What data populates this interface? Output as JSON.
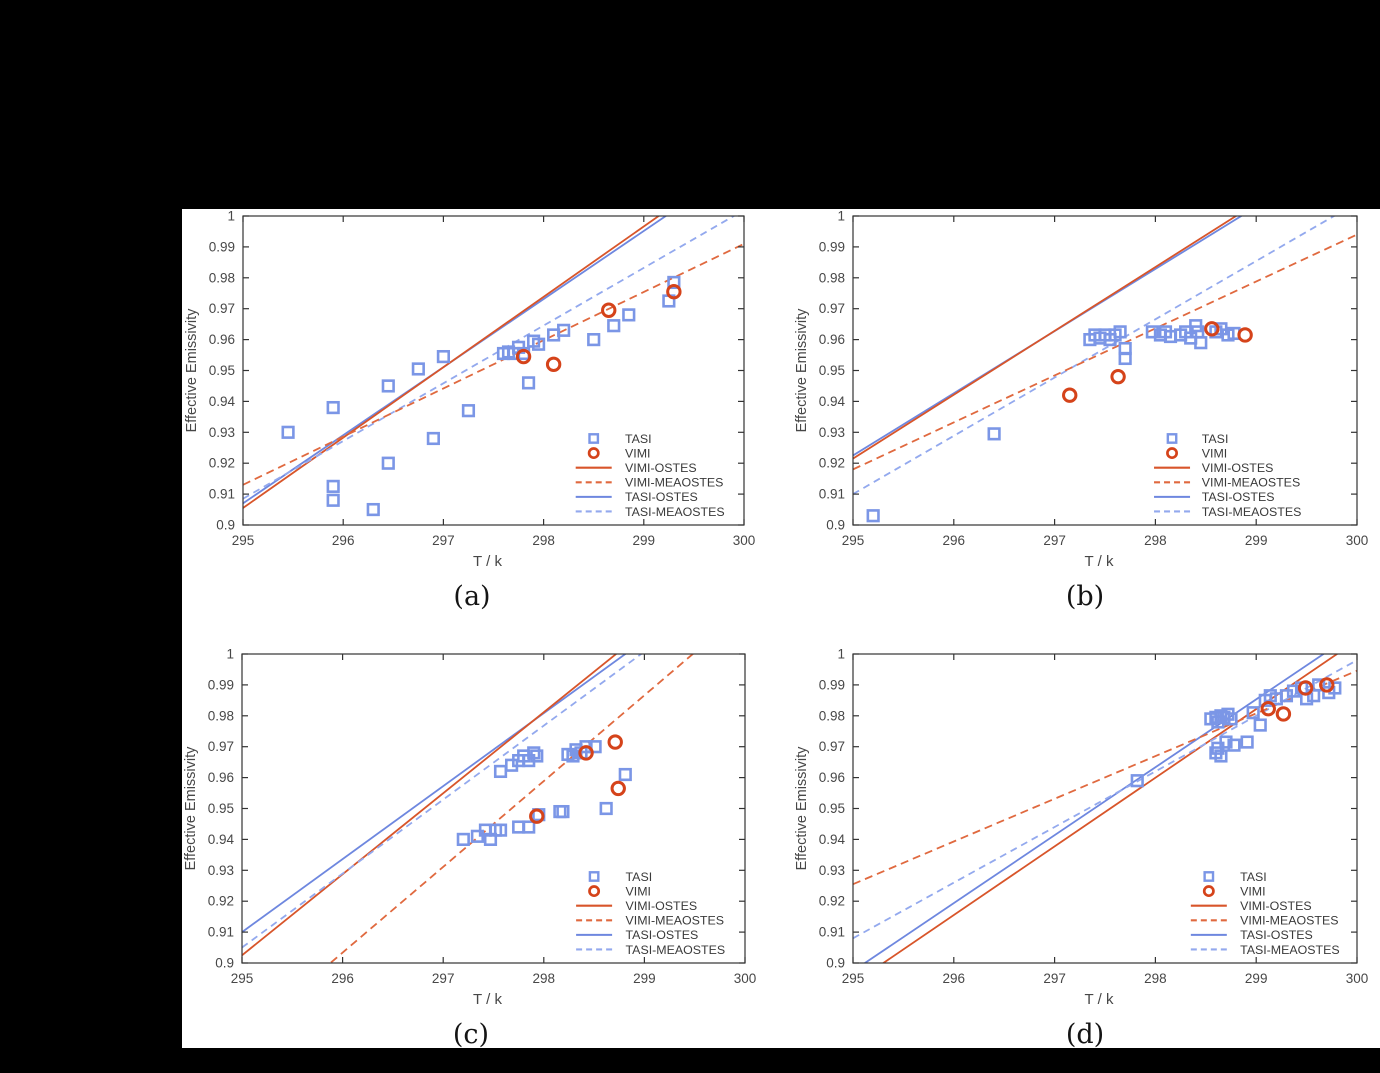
{
  "figure": {
    "background": "#000000",
    "panel_background": "#ffffff",
    "colors": {
      "tasi_marker": "#7b96e6",
      "vimi_marker": "#d5431a",
      "tasi_line": "#6e87df",
      "tasi_dash": "#93a9ee",
      "vimi_line": "#d8552a",
      "vimi_dash": "#e0693f",
      "axis": "#333333",
      "text": "#474747",
      "legend_text": "#3a3a3a"
    },
    "legend_labels": [
      "TASI",
      "VIMI",
      "VIMI-OSTES",
      "VIMI-MEAOSTES",
      "TASI-OSTES",
      "TASI-MEAOSTES"
    ]
  },
  "chart_data": [
    {
      "id": "a",
      "type": "scatter",
      "title": "(a)",
      "xlabel": "T / k",
      "ylabel": "Effective Emissivity",
      "xlim": [
        295,
        300
      ],
      "ylim": [
        0.9,
        1.0
      ],
      "xticks": [
        295,
        296,
        297,
        298,
        299,
        300
      ],
      "yticks": [
        0.9,
        0.91,
        0.92,
        0.93,
        0.94,
        0.95,
        0.96,
        0.97,
        0.98,
        0.99,
        1
      ],
      "grid": false,
      "legend_position": "lower-right-inside",
      "series": {
        "TASI": [
          [
            295.45,
            0.93
          ],
          [
            295.9,
            0.938
          ],
          [
            295.9,
            0.9125
          ],
          [
            295.9,
            0.908
          ],
          [
            296.3,
            0.905
          ],
          [
            296.45,
            0.945
          ],
          [
            296.45,
            0.92
          ],
          [
            296.75,
            0.9505
          ],
          [
            296.9,
            0.928
          ],
          [
            297.0,
            0.9545
          ],
          [
            297.25,
            0.937
          ],
          [
            297.6,
            0.9555
          ],
          [
            297.65,
            0.956
          ],
          [
            297.7,
            0.9555
          ],
          [
            297.75,
            0.9575
          ],
          [
            297.8,
            0.9555
          ],
          [
            297.85,
            0.946
          ],
          [
            297.9,
            0.9595
          ],
          [
            297.95,
            0.9585
          ],
          [
            298.1,
            0.9615
          ],
          [
            298.2,
            0.963
          ],
          [
            298.5,
            0.96
          ],
          [
            298.7,
            0.9645
          ],
          [
            298.85,
            0.968
          ],
          [
            299.25,
            0.9725
          ],
          [
            299.3,
            0.9785
          ]
        ],
        "VIMI": [
          [
            297.8,
            0.9545
          ],
          [
            298.1,
            0.952
          ],
          [
            298.65,
            0.9695
          ],
          [
            299.3,
            0.9755
          ]
        ],
        "VIMI_OSTES": {
          "x": [
            295,
            300
          ],
          "y": [
            0.9055,
            1.0194
          ]
        },
        "VIMI_MEAOSTES": {
          "x": [
            295,
            300
          ],
          "y": [
            0.913,
            0.991
          ]
        },
        "TASI_OSTES": {
          "x": [
            295,
            300
          ],
          "y": [
            0.907,
            1.0172
          ]
        },
        "TASI_MEAOSTES": {
          "x": [
            295,
            300
          ],
          "y": [
            0.9085,
            1.0019
          ]
        }
      }
    },
    {
      "id": "b",
      "type": "scatter",
      "title": "(b)",
      "xlabel": "T / k",
      "ylabel": "Effective Emissivity",
      "xlim": [
        295,
        300
      ],
      "ylim": [
        0.9,
        1.0
      ],
      "xticks": [
        295,
        296,
        297,
        298,
        299,
        300
      ],
      "yticks": [
        0.9,
        0.91,
        0.92,
        0.93,
        0.94,
        0.95,
        0.96,
        0.97,
        0.98,
        0.99,
        1
      ],
      "grid": false,
      "legend_position": "lower-right-inside",
      "series": {
        "TASI": [
          [
            295.2,
            0.903
          ],
          [
            296.4,
            0.9295
          ],
          [
            297.35,
            0.96
          ],
          [
            297.4,
            0.9615
          ],
          [
            297.45,
            0.9605
          ],
          [
            297.5,
            0.9615
          ],
          [
            297.55,
            0.96
          ],
          [
            297.6,
            0.9615
          ],
          [
            297.65,
            0.9625
          ],
          [
            297.7,
            0.9571
          ],
          [
            297.7,
            0.9539
          ],
          [
            297.97,
            0.9625
          ],
          [
            298.05,
            0.9615
          ],
          [
            298.1,
            0.9625
          ],
          [
            298.15,
            0.961
          ],
          [
            298.25,
            0.9615
          ],
          [
            298.3,
            0.9625
          ],
          [
            298.35,
            0.9605
          ],
          [
            298.4,
            0.9645
          ],
          [
            298.42,
            0.9625
          ],
          [
            298.45,
            0.959
          ],
          [
            298.6,
            0.9625
          ],
          [
            298.65,
            0.9635
          ],
          [
            298.72,
            0.9615
          ],
          [
            298.78,
            0.962
          ]
        ],
        "VIMI": [
          [
            297.15,
            0.942
          ],
          [
            297.63,
            0.948
          ],
          [
            298.56,
            0.9635
          ],
          [
            298.89,
            0.9615
          ]
        ],
        "VIMI_OSTES": {
          "x": [
            295,
            300
          ],
          "y": [
            0.9215,
            1.0248
          ]
        },
        "VIMI_MEAOSTES": {
          "x": [
            295,
            300
          ],
          "y": [
            0.918,
            0.994
          ]
        },
        "TASI_OSTES": {
          "x": [
            295,
            300
          ],
          "y": [
            0.9225,
            1.0231
          ]
        },
        "TASI_MEAOSTES": {
          "x": [
            295,
            300
          ],
          "y": [
            0.91,
            1.0043
          ]
        }
      }
    },
    {
      "id": "c",
      "type": "scatter",
      "title": "(c)",
      "xlabel": "T / k",
      "ylabel": "Effective Emissivity",
      "xlim": [
        295,
        300
      ],
      "ylim": [
        0.9,
        1.0
      ],
      "xticks": [
        295,
        296,
        297,
        298,
        299,
        300
      ],
      "yticks": [
        0.9,
        0.91,
        0.92,
        0.93,
        0.94,
        0.95,
        0.96,
        0.97,
        0.98,
        0.99,
        1
      ],
      "grid": false,
      "legend_position": "lower-right-inside",
      "series": {
        "TASI": [
          [
            297.2,
            0.94
          ],
          [
            297.34,
            0.941
          ],
          [
            297.42,
            0.943
          ],
          [
            297.47,
            0.94
          ],
          [
            297.52,
            0.943
          ],
          [
            297.57,
            0.943
          ],
          [
            297.75,
            0.944
          ],
          [
            297.85,
            0.944
          ],
          [
            297.95,
            0.948
          ],
          [
            298.16,
            0.949
          ],
          [
            298.19,
            0.949
          ],
          [
            298.62,
            0.95
          ],
          [
            298.81,
            0.961
          ],
          [
            297.57,
            0.962
          ],
          [
            297.68,
            0.964
          ],
          [
            297.75,
            0.9655
          ],
          [
            297.8,
            0.967
          ],
          [
            297.85,
            0.9655
          ],
          [
            297.9,
            0.968
          ],
          [
            297.93,
            0.967
          ],
          [
            298.24,
            0.9675
          ],
          [
            298.29,
            0.967
          ],
          [
            298.32,
            0.969
          ],
          [
            298.37,
            0.968
          ],
          [
            298.42,
            0.97
          ],
          [
            298.51,
            0.97
          ]
        ],
        "VIMI": [
          [
            297.93,
            0.9475
          ],
          [
            298.42,
            0.968
          ],
          [
            298.71,
            0.9715
          ],
          [
            298.74,
            0.9565
          ]
        ],
        "VIMI_OSTES": {
          "x": [
            295,
            300
          ],
          "y": [
            0.9025,
            1.0336
          ]
        },
        "VIMI_MEAOSTES": {
          "x": [
            295,
            300
          ],
          "y": [
            0.8756,
            1.0144
          ]
        },
        "TASI_OSTES": {
          "x": [
            295,
            300
          ],
          "y": [
            0.91,
            1.0281
          ]
        },
        "TASI_MEAOSTES": {
          "x": [
            295,
            300
          ],
          "y": [
            0.905,
            1.0247
          ]
        }
      }
    },
    {
      "id": "d",
      "type": "scatter",
      "title": "(d)",
      "xlabel": "T / k",
      "ylabel": "Effective Emissivity",
      "xlim": [
        295,
        300
      ],
      "ylim": [
        0.9,
        1.0
      ],
      "xticks": [
        295,
        296,
        297,
        298,
        299,
        300
      ],
      "yticks": [
        0.9,
        0.91,
        0.92,
        0.93,
        0.94,
        0.95,
        0.96,
        0.97,
        0.98,
        0.99,
        1
      ],
      "grid": false,
      "legend_position": "lower-right-inside",
      "series": {
        "TASI": [
          [
            297.82,
            0.959
          ],
          [
            298.6,
            0.968
          ],
          [
            298.62,
            0.9695
          ],
          [
            298.65,
            0.967
          ],
          [
            298.7,
            0.9715
          ],
          [
            298.78,
            0.9705
          ],
          [
            298.91,
            0.9715
          ],
          [
            298.55,
            0.979
          ],
          [
            298.6,
            0.9795
          ],
          [
            298.62,
            0.978
          ],
          [
            298.65,
            0.98
          ],
          [
            298.68,
            0.9795
          ],
          [
            298.72,
            0.9805
          ],
          [
            298.75,
            0.979
          ],
          [
            298.97,
            0.981
          ],
          [
            299.04,
            0.977
          ],
          [
            299.09,
            0.985
          ],
          [
            299.14,
            0.9865
          ],
          [
            299.2,
            0.9855
          ],
          [
            299.3,
            0.9865
          ],
          [
            299.37,
            0.988
          ],
          [
            299.45,
            0.989
          ],
          [
            299.5,
            0.9855
          ],
          [
            299.57,
            0.9865
          ],
          [
            299.62,
            0.99
          ],
          [
            299.72,
            0.9875
          ],
          [
            299.78,
            0.989
          ]
        ],
        "VIMI": [
          [
            299.12,
            0.9823
          ],
          [
            299.27,
            0.9806
          ],
          [
            299.49,
            0.989
          ],
          [
            299.7,
            0.99
          ]
        ],
        "VIMI_OSTES": {
          "x": [
            295,
            300
          ],
          "y": [
            0.8933,
            1.0044
          ]
        },
        "VIMI_MEAOSTES": {
          "x": [
            295,
            300
          ],
          "y": [
            0.9255,
            0.9946
          ]
        },
        "TASI_OSTES": {
          "x": [
            295,
            300
          ],
          "y": [
            0.8974,
            1.0073
          ]
        },
        "TASI_MEAOSTES": {
          "x": [
            295,
            300
          ],
          "y": [
            0.908,
            0.998
          ]
        }
      }
    }
  ]
}
